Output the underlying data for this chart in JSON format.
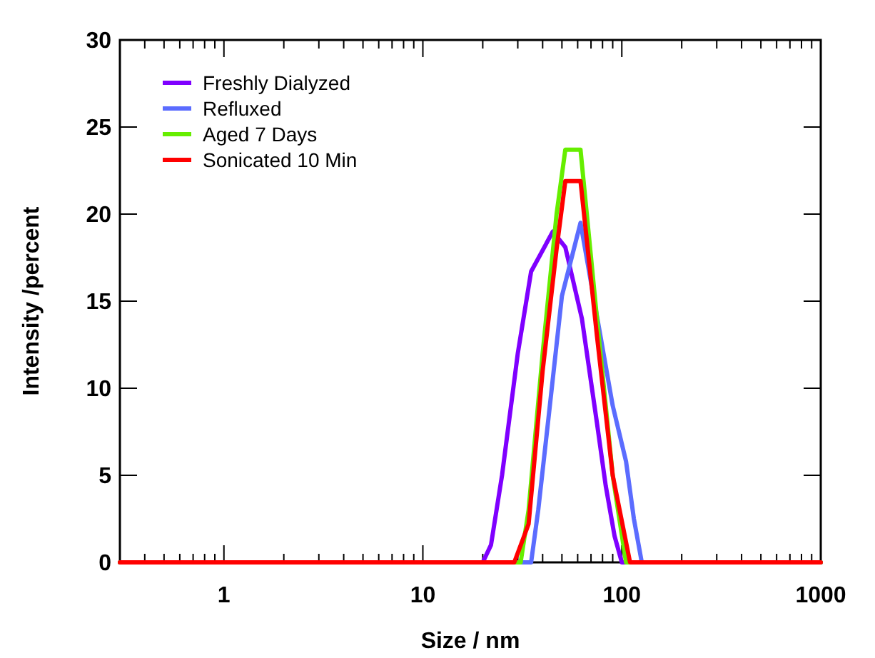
{
  "chart_data": {
    "type": "line",
    "xlabel": "Size / nm",
    "ylabel": "Intensity /percent",
    "log": "x",
    "xlim": [
      0.3,
      1000
    ],
    "ylim": [
      0,
      30
    ],
    "xticks": [
      {
        "value": 0.3,
        "label": null
      },
      {
        "value": 0.4,
        "label": null
      },
      {
        "value": 0.5,
        "label": null
      },
      {
        "value": 0.6,
        "label": null
      },
      {
        "value": 0.7,
        "label": null
      },
      {
        "value": 0.8,
        "label": null
      },
      {
        "value": 0.9,
        "label": null
      },
      1,
      {
        "value": 2,
        "label": null
      },
      {
        "value": 3,
        "label": null
      },
      {
        "value": 4,
        "label": null
      },
      {
        "value": 5,
        "label": null
      },
      {
        "value": 6,
        "label": null
      },
      {
        "value": 7,
        "label": null
      },
      {
        "value": 8,
        "label": null
      },
      {
        "value": 9,
        "label": null
      },
      10,
      {
        "value": 20,
        "label": null
      },
      {
        "value": 30,
        "label": null
      },
      {
        "value": 40,
        "label": null
      },
      {
        "value": 50,
        "label": null
      },
      {
        "value": 60,
        "label": null
      },
      {
        "value": 70,
        "label": null
      },
      {
        "value": 80,
        "label": null
      },
      {
        "value": 90,
        "label": null
      },
      100,
      {
        "value": 200,
        "label": null
      },
      {
        "value": 300,
        "label": null
      },
      {
        "value": 400,
        "label": null
      },
      {
        "value": 500,
        "label": null
      },
      {
        "value": 600,
        "label": null
      },
      {
        "value": 700,
        "label": null
      },
      {
        "value": 800,
        "label": null
      },
      {
        "value": 900,
        "label": null
      },
      1000
    ],
    "yticks": [
      0,
      5,
      10,
      15,
      20,
      25,
      30
    ],
    "grid": false,
    "legend": "top left",
    "marker": "none",
    "line_style": "solid",
    "series": [
      {
        "name": "Freshly Dialyzed",
        "color": "#7f00ff",
        "x": [
          0.3,
          20,
          22,
          25,
          30,
          35,
          45,
          52,
          63,
          75,
          83,
          92,
          100,
          1000
        ],
        "values": [
          0,
          0,
          1,
          5,
          12,
          16.7,
          19,
          18.1,
          14,
          8,
          4.4,
          1.5,
          0,
          0
        ]
      },
      {
        "name": "Refluxed",
        "color": "#5b6cff",
        "x": [
          0.3,
          35,
          38,
          43,
          50,
          62,
          90,
          105,
          115,
          126,
          1000
        ],
        "values": [
          0,
          0,
          3,
          8.5,
          15.3,
          19.5,
          9,
          5.8,
          2.5,
          0,
          0
        ]
      },
      {
        "name": "Aged 7 Days",
        "color": "#66ee00",
        "x": [
          0.3,
          31,
          34,
          40,
          47,
          52,
          62,
          75,
          90,
          105,
          1000
        ],
        "values": [
          0,
          0,
          3,
          12,
          20,
          23.7,
          23.7,
          14,
          5,
          0,
          0
        ]
      },
      {
        "name": "Sonicated 10 Min",
        "color": "#ff0000",
        "x": [
          0.3,
          28.8,
          34,
          40,
          47,
          52,
          62,
          75,
          90,
          110,
          1000
        ],
        "values": [
          0,
          0,
          2.2,
          11,
          18,
          21.9,
          21.9,
          13,
          5,
          0,
          0
        ]
      }
    ]
  }
}
